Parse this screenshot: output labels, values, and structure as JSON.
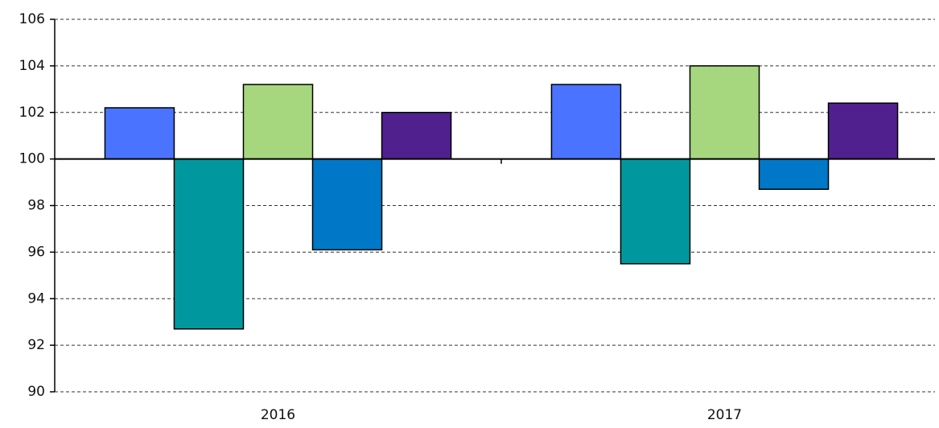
{
  "chart_data": {
    "type": "bar",
    "categories": [
      "2016",
      "2017"
    ],
    "series": [
      {
        "color": "#4a74ff",
        "values": [
          102.2,
          103.2
        ]
      },
      {
        "color": "#00989f",
        "values": [
          92.7,
          95.5
        ]
      },
      {
        "color": "#a6d77e",
        "values": [
          103.2,
          104.0
        ]
      },
      {
        "color": "#0078c8",
        "values": [
          96.1,
          98.7
        ]
      },
      {
        "color": "#51208f",
        "values": [
          102.0,
          102.4
        ]
      }
    ],
    "baseline": 100,
    "ylim": [
      90,
      106
    ],
    "yticks": [
      90,
      92,
      94,
      96,
      98,
      100,
      102,
      104,
      106
    ],
    "grid": true
  }
}
